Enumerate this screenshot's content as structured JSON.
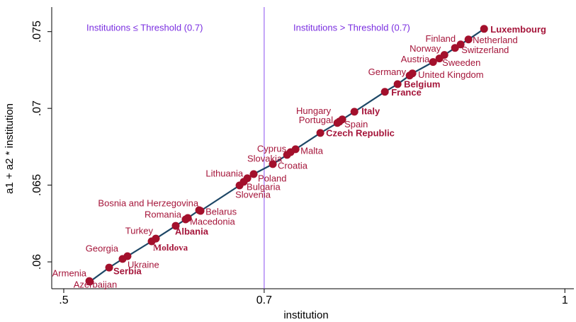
{
  "chart_data": {
    "type": "scatter",
    "x_label": "institution",
    "y_label": "a1 + a2 * institution",
    "annotations": [
      "Institutions ≤ Threshold (0.7)",
      "Institutions > Threshold (0.7)"
    ],
    "threshold": 0.7,
    "threshold_color": "#8a4df0",
    "marker_color": "#a3102c",
    "line_color": "#1d4766",
    "labels": [
      "Armenia",
      "Azerbaijan",
      "Serbia",
      "Georgia",
      "Ukraine",
      "Turkey",
      "Moldova",
      "Albania",
      "Romania",
      "Macedonia",
      "Bosnia and Herzegovina",
      "Belarus",
      "Slovenia",
      "Bulgaria",
      "Lithuania",
      "Poland",
      "Croatia",
      "Slovakia",
      "Cyprus",
      "Malta",
      "Czech Republic",
      "Portugal",
      "Hungary",
      "Spain",
      "Italy",
      "France",
      "Belgium",
      "Germany",
      "United Kingdom",
      "Austria",
      "Sweeden",
      "Norway",
      "Switzerland",
      "Finland",
      "Netherland",
      "Luxembourg"
    ],
    "x": [
      0.5255,
      0.526,
      0.5453,
      0.5587,
      0.5636,
      0.5877,
      0.5919,
      0.6117,
      0.6216,
      0.6238,
      0.6351,
      0.6365,
      0.6754,
      0.6796,
      0.6832,
      0.6895,
      0.7086,
      0.7228,
      0.7263,
      0.7313,
      0.756,
      0.773,
      0.7751,
      0.7779,
      0.79,
      0.8204,
      0.8331,
      0.8451,
      0.8479,
      0.8685,
      0.8748,
      0.8798,
      0.8904,
      0.896,
      0.9038,
      0.9194
    ],
    "values": [
      0.05875,
      0.05871,
      0.05963,
      0.06019,
      0.06037,
      0.06134,
      0.06152,
      0.06235,
      0.06277,
      0.06286,
      0.06337,
      0.06332,
      0.06498,
      0.06522,
      0.06545,
      0.06572,
      0.06637,
      0.06697,
      0.06715,
      0.06734,
      0.0684,
      0.06905,
      0.06914,
      0.06928,
      0.06978,
      0.07108,
      0.07158,
      0.07214,
      0.07228,
      0.07302,
      0.07325,
      0.07348,
      0.07394,
      0.07417,
      0.07449,
      0.07518
    ],
    "xlim": [
      0.488,
      1.009
    ],
    "ylim": [
      0.05825,
      0.0766
    ],
    "xticks": [
      {
        "value": 0.5,
        "label": ".5"
      },
      0.7,
      1
    ],
    "yticks": [
      {
        "value": 0.06,
        "label": ".06"
      },
      {
        "value": 0.065,
        "label": ".065"
      },
      {
        "value": 0.07,
        "label": ".07"
      },
      {
        "value": 0.075,
        "label": ".075"
      }
    ]
  }
}
